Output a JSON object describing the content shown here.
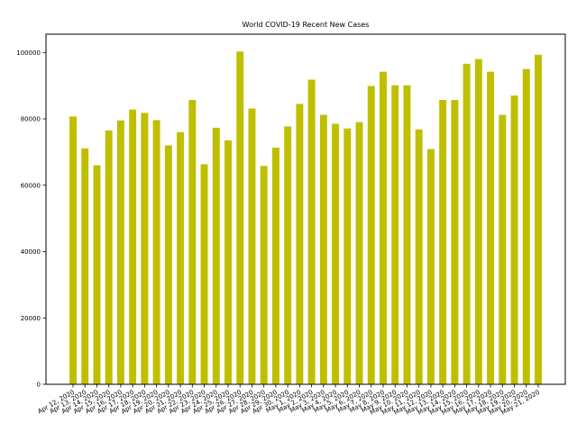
{
  "chart_data": {
    "type": "bar",
    "title": "World COVID-19 Recent New Cases",
    "xlabel": "",
    "ylabel": "",
    "ylim": [
      0,
      105500
    ],
    "yticks": [
      0,
      20000,
      40000,
      60000,
      80000,
      100000
    ],
    "grid": false,
    "legend": "none",
    "bar_color": "#bfbf00",
    "categories": [
      "Apr 12, 2020",
      "Apr 13, 2020",
      "Apr 14, 2020",
      "Apr 15, 2020",
      "Apr 16, 2020",
      "Apr 17, 2020",
      "Apr 18, 2020",
      "Apr 19, 2020",
      "Apr 20, 2020",
      "Apr 21, 2020",
      "Apr 22, 2020",
      "Apr 23, 2020",
      "Apr 24, 2020",
      "Apr 25, 2020",
      "Apr 26, 2020",
      "Apr 27, 2020",
      "Apr 28, 2020",
      "Apr 29, 2020",
      "Apr 30, 2020",
      "May 1, 2020",
      "May 2, 2020",
      "May 3, 2020",
      "May 4, 2020",
      "May 5, 2020",
      "May 6, 2020",
      "May 7, 2020",
      "May 8, 2020",
      "May 9, 2020",
      "May 10, 2020",
      "May 11, 2020",
      "May 12, 2020",
      "May 13, 2020",
      "May 14, 2020",
      "May 15, 2020",
      "May 16, 2020",
      "May 17, 2020",
      "May 18, 2020",
      "May 19, 2020",
      "May 20, 2020",
      "May 21, 2020"
    ],
    "values": [
      80700,
      71100,
      66000,
      76500,
      79500,
      82800,
      81800,
      79600,
      72000,
      76000,
      85700,
      66300,
      77300,
      73500,
      100300,
      83100,
      65800,
      71300,
      77700,
      84500,
      91800,
      81200,
      78500,
      77100,
      79000,
      89900,
      94200,
      90100,
      90100,
      76800,
      70900,
      85700,
      85700,
      96600,
      98000,
      94200,
      81200,
      87000,
      95000,
      99300
    ]
  }
}
